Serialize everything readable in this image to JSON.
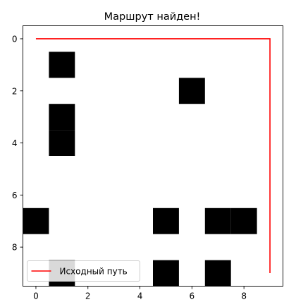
{
  "chart_data": {
    "type": "heatmap",
    "title": "Маршрут найден!",
    "xlabel": "",
    "ylabel": "",
    "grid_size": [
      10,
      10
    ],
    "x_range": [
      -0.5,
      9.5
    ],
    "y_range": [
      -0.5,
      9.5
    ],
    "y_inverted": true,
    "x_ticks": [
      "0",
      "2",
      "4",
      "6",
      "8"
    ],
    "x_tick_values": [
      0,
      2,
      4,
      6,
      8
    ],
    "y_ticks": [
      "0",
      "2",
      "4",
      "6",
      "8"
    ],
    "y_tick_values": [
      0,
      2,
      4,
      6,
      8
    ],
    "grid": false,
    "obstacles": [
      {
        "x": 1,
        "y": 1
      },
      {
        "x": 6,
        "y": 2
      },
      {
        "x": 1,
        "y": 3
      },
      {
        "x": 1,
        "y": 4
      },
      {
        "x": 0,
        "y": 7
      },
      {
        "x": 5,
        "y": 7
      },
      {
        "x": 7,
        "y": 7
      },
      {
        "x": 8,
        "y": 7
      },
      {
        "x": 1,
        "y": 9
      },
      {
        "x": 5,
        "y": 9
      },
      {
        "x": 7,
        "y": 9
      }
    ],
    "obstacle_color": "#000000",
    "background_color": "#ffffff",
    "series": [
      {
        "name": "Исходный путь",
        "color": "#ff0000",
        "x": [
          0,
          9,
          9
        ],
        "y": [
          0,
          0,
          9
        ]
      }
    ],
    "legend_position": "lower-left"
  }
}
